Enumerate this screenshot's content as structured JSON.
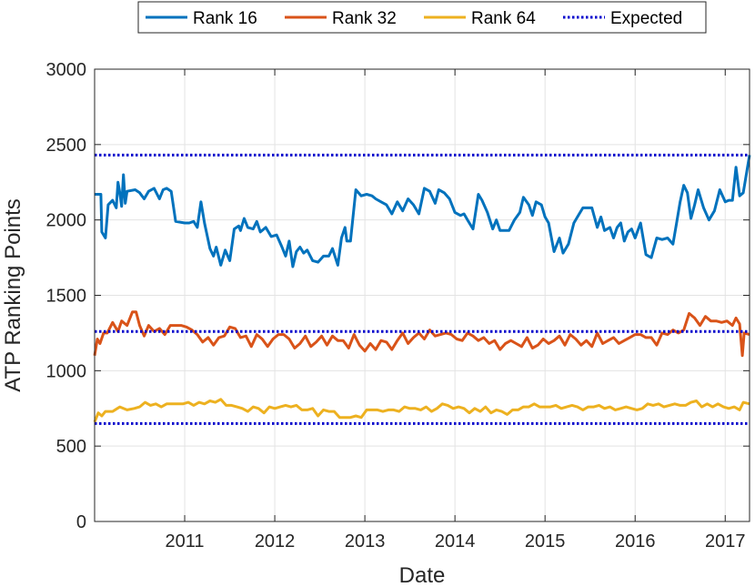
{
  "chart_data": {
    "type": "line",
    "xlabel": "Date",
    "ylabel": "ATP Ranking Points",
    "ylim": [
      0,
      3000
    ],
    "yticks": [
      0,
      500,
      1000,
      1500,
      2000,
      2500,
      3000
    ],
    "xlim": [
      2010.0,
      2017.27
    ],
    "xticks": [
      {
        "value": 2011,
        "label": "2011"
      },
      {
        "value": 2012,
        "label": "2012"
      },
      {
        "value": 2013,
        "label": "2013"
      },
      {
        "value": 2014,
        "label": "2014"
      },
      {
        "value": 2015,
        "label": "2015"
      },
      {
        "value": 2016,
        "label": "2016"
      },
      {
        "value": 2017,
        "label": "2017"
      }
    ],
    "grid": true,
    "legend_position": "top-center, outside the plot",
    "series": [
      {
        "name": "Rank 16",
        "color": "#0072BD",
        "style": "solid",
        "x": [
          2010.0,
          2010.07,
          2010.08,
          2010.12,
          2010.15,
          2010.2,
          2010.24,
          2010.26,
          2010.28,
          2010.3,
          2010.32,
          2010.34,
          2010.36,
          2010.45,
          2010.5,
          2010.55,
          2010.6,
          2010.66,
          2010.72,
          2010.76,
          2010.8,
          2010.85,
          2010.9,
          2011.0,
          2011.05,
          2011.1,
          2011.14,
          2011.18,
          2011.22,
          2011.28,
          2011.32,
          2011.35,
          2011.4,
          2011.45,
          2011.5,
          2011.55,
          2011.6,
          2011.62,
          2011.66,
          2011.7,
          2011.76,
          2011.8,
          2011.84,
          2011.9,
          2011.96,
          2012.02,
          2012.08,
          2012.12,
          2012.16,
          2012.2,
          2012.24,
          2012.28,
          2012.32,
          2012.36,
          2012.42,
          2012.48,
          2012.54,
          2012.6,
          2012.64,
          2012.7,
          2012.74,
          2012.78,
          2012.8,
          2012.84,
          2012.9,
          2012.96,
          2013.02,
          2013.08,
          2013.12,
          2013.18,
          2013.24,
          2013.3,
          2013.36,
          2013.42,
          2013.48,
          2013.54,
          2013.6,
          2013.66,
          2013.72,
          2013.78,
          2013.82,
          2013.88,
          2013.94,
          2014.0,
          2014.06,
          2014.1,
          2014.14,
          2014.2,
          2014.26,
          2014.3,
          2014.36,
          2014.42,
          2014.46,
          2014.5,
          2014.54,
          2014.6,
          2014.66,
          2014.72,
          2014.76,
          2014.82,
          2014.86,
          2014.9,
          2014.96,
          2015.0,
          2015.04,
          2015.1,
          2015.16,
          2015.2,
          2015.26,
          2015.32,
          2015.38,
          2015.42,
          2015.46,
          2015.52,
          2015.58,
          2015.62,
          2015.66,
          2015.72,
          2015.76,
          2015.8,
          2015.84,
          2015.88,
          2015.92,
          2015.96,
          2016.0,
          2016.06,
          2016.12,
          2016.18,
          2016.24,
          2016.3,
          2016.36,
          2016.42,
          2016.46,
          2016.5,
          2016.54,
          2016.58,
          2016.62,
          2016.66,
          2016.7,
          2016.76,
          2016.82,
          2016.88,
          2016.94,
          2017.0,
          2017.04,
          2017.08,
          2017.12,
          2017.16,
          2017.2,
          2017.27
        ],
        "y": [
          2170,
          2170,
          1920,
          1880,
          2100,
          2130,
          2080,
          2250,
          2180,
          2090,
          2300,
          2110,
          2190,
          2200,
          2180,
          2140,
          2190,
          2210,
          2140,
          2200,
          2210,
          2190,
          1990,
          1980,
          1980,
          1990,
          1950,
          2120,
          1980,
          1810,
          1760,
          1820,
          1700,
          1800,
          1730,
          1940,
          1960,
          1930,
          2010,
          1950,
          1940,
          1990,
          1920,
          1950,
          1890,
          1900,
          1820,
          1760,
          1860,
          1690,
          1790,
          1820,
          1780,
          1800,
          1730,
          1720,
          1760,
          1760,
          1810,
          1700,
          1880,
          1950,
          1860,
          1860,
          2200,
          2160,
          2170,
          2160,
          2140,
          2120,
          2100,
          2040,
          2120,
          2060,
          2140,
          2100,
          2040,
          2210,
          2190,
          2110,
          2200,
          2180,
          2140,
          2050,
          2030,
          2040,
          2000,
          1940,
          2170,
          2130,
          2050,
          1940,
          2000,
          1930,
          1930,
          1930,
          2000,
          2050,
          2150,
          2100,
          2030,
          2120,
          2100,
          2020,
          1980,
          1790,
          1880,
          1780,
          1840,
          1980,
          2040,
          2080,
          2080,
          2080,
          1950,
          2020,
          1930,
          1950,
          1880,
          1950,
          1980,
          1860,
          1920,
          1940,
          1880,
          1980,
          1770,
          1750,
          1880,
          1870,
          1880,
          1840,
          1980,
          2120,
          2230,
          2180,
          2010,
          2100,
          2200,
          2080,
          2000,
          2060,
          2200,
          2120,
          2130,
          2130,
          2350,
          2160,
          2180,
          2430
        ]
      },
      {
        "name": "Rank 32",
        "color": "#D95319",
        "style": "solid",
        "x": [
          2010.0,
          2010.03,
          2010.06,
          2010.1,
          2010.14,
          2010.2,
          2010.26,
          2010.3,
          2010.36,
          2010.42,
          2010.46,
          2010.5,
          2010.55,
          2010.6,
          2010.66,
          2010.72,
          2010.78,
          2010.84,
          2010.9,
          2010.96,
          2011.02,
          2011.08,
          2011.14,
          2011.2,
          2011.26,
          2011.32,
          2011.38,
          2011.44,
          2011.5,
          2011.56,
          2011.62,
          2011.68,
          2011.74,
          2011.8,
          2011.86,
          2011.92,
          2011.98,
          2012.04,
          2012.1,
          2012.16,
          2012.22,
          2012.28,
          2012.34,
          2012.4,
          2012.46,
          2012.52,
          2012.58,
          2012.64,
          2012.7,
          2012.76,
          2012.82,
          2012.88,
          2012.94,
          2013.0,
          2013.06,
          2013.12,
          2013.18,
          2013.24,
          2013.3,
          2013.36,
          2013.42,
          2013.48,
          2013.54,
          2013.6,
          2013.66,
          2013.72,
          2013.78,
          2013.84,
          2013.9,
          2013.96,
          2014.02,
          2014.08,
          2014.14,
          2014.2,
          2014.26,
          2014.32,
          2014.38,
          2014.44,
          2014.5,
          2014.56,
          2014.62,
          2014.68,
          2014.74,
          2014.8,
          2014.86,
          2014.92,
          2014.98,
          2015.04,
          2015.1,
          2015.16,
          2015.22,
          2015.28,
          2015.34,
          2015.4,
          2015.46,
          2015.52,
          2015.58,
          2015.64,
          2015.7,
          2015.76,
          2015.82,
          2015.88,
          2015.94,
          2016.0,
          2016.06,
          2016.12,
          2016.18,
          2016.24,
          2016.3,
          2016.36,
          2016.42,
          2016.48,
          2016.54,
          2016.6,
          2016.66,
          2016.72,
          2016.78,
          2016.84,
          2016.9,
          2016.96,
          2017.02,
          2017.08,
          2017.12,
          2017.16,
          2017.19,
          2017.21,
          2017.27
        ],
        "y": [
          1100,
          1210,
          1180,
          1250,
          1250,
          1320,
          1260,
          1330,
          1300,
          1390,
          1390,
          1300,
          1230,
          1300,
          1260,
          1280,
          1240,
          1300,
          1300,
          1300,
          1290,
          1270,
          1240,
          1190,
          1220,
          1170,
          1220,
          1230,
          1290,
          1280,
          1220,
          1230,
          1160,
          1240,
          1210,
          1160,
          1210,
          1240,
          1240,
          1210,
          1150,
          1180,
          1230,
          1160,
          1190,
          1230,
          1170,
          1230,
          1200,
          1200,
          1150,
          1240,
          1170,
          1130,
          1180,
          1140,
          1200,
          1190,
          1140,
          1200,
          1250,
          1180,
          1220,
          1250,
          1210,
          1270,
          1230,
          1240,
          1250,
          1240,
          1210,
          1200,
          1250,
          1230,
          1200,
          1220,
          1180,
          1200,
          1140,
          1180,
          1200,
          1180,
          1160,
          1220,
          1150,
          1170,
          1210,
          1180,
          1200,
          1230,
          1170,
          1240,
          1210,
          1170,
          1200,
          1160,
          1250,
          1180,
          1200,
          1220,
          1180,
          1200,
          1220,
          1240,
          1240,
          1220,
          1220,
          1170,
          1250,
          1240,
          1270,
          1250,
          1270,
          1380,
          1350,
          1300,
          1360,
          1330,
          1330,
          1320,
          1330,
          1300,
          1350,
          1310,
          1100,
          1250,
          1240
        ]
      },
      {
        "name": "Rank 64",
        "color": "#EDB120",
        "style": "solid",
        "x": [
          2010.0,
          2010.04,
          2010.08,
          2010.12,
          2010.2,
          2010.28,
          2010.36,
          2010.44,
          2010.5,
          2010.56,
          2010.62,
          2010.68,
          2010.74,
          2010.8,
          2010.86,
          2010.92,
          2010.98,
          2011.04,
          2011.1,
          2011.16,
          2011.22,
          2011.28,
          2011.34,
          2011.4,
          2011.46,
          2011.52,
          2011.58,
          2011.64,
          2011.7,
          2011.76,
          2011.82,
          2011.88,
          2011.94,
          2012.0,
          2012.06,
          2012.12,
          2012.18,
          2012.24,
          2012.3,
          2012.36,
          2012.42,
          2012.48,
          2012.54,
          2012.6,
          2012.66,
          2012.72,
          2012.78,
          2012.84,
          2012.9,
          2012.96,
          2013.02,
          2013.08,
          2013.14,
          2013.2,
          2013.26,
          2013.32,
          2013.38,
          2013.44,
          2013.5,
          2013.56,
          2013.62,
          2013.68,
          2013.74,
          2013.8,
          2013.86,
          2013.92,
          2013.98,
          2014.04,
          2014.1,
          2014.16,
          2014.22,
          2014.28,
          2014.34,
          2014.4,
          2014.46,
          2014.52,
          2014.58,
          2014.64,
          2014.7,
          2014.76,
          2014.82,
          2014.88,
          2014.94,
          2015.0,
          2015.06,
          2015.12,
          2015.18,
          2015.24,
          2015.3,
          2015.36,
          2015.42,
          2015.48,
          2015.54,
          2015.6,
          2015.66,
          2015.72,
          2015.78,
          2015.84,
          2015.9,
          2015.96,
          2016.02,
          2016.08,
          2016.14,
          2016.2,
          2016.26,
          2016.32,
          2016.38,
          2016.44,
          2016.5,
          2016.56,
          2016.62,
          2016.68,
          2016.74,
          2016.8,
          2016.86,
          2016.92,
          2016.98,
          2017.04,
          2017.1,
          2017.16,
          2017.2,
          2017.27
        ],
        "y": [
          660,
          720,
          700,
          730,
          730,
          760,
          740,
          750,
          760,
          790,
          770,
          780,
          760,
          780,
          780,
          780,
          780,
          790,
          770,
          790,
          780,
          800,
          790,
          810,
          770,
          770,
          760,
          750,
          730,
          760,
          750,
          720,
          760,
          750,
          760,
          770,
          760,
          770,
          740,
          740,
          750,
          700,
          740,
          730,
          730,
          690,
          690,
          690,
          700,
          690,
          740,
          740,
          740,
          730,
          740,
          740,
          730,
          760,
          750,
          750,
          740,
          760,
          730,
          750,
          780,
          770,
          750,
          760,
          750,
          720,
          750,
          730,
          760,
          720,
          740,
          730,
          710,
          740,
          740,
          760,
          760,
          780,
          760,
          760,
          760,
          770,
          750,
          760,
          770,
          760,
          740,
          760,
          760,
          770,
          750,
          760,
          740,
          750,
          760,
          750,
          740,
          750,
          780,
          770,
          780,
          760,
          770,
          780,
          770,
          770,
          790,
          800,
          760,
          780,
          760,
          780,
          760,
          750,
          760,
          740,
          790,
          780
        ]
      },
      {
        "name": "Expected",
        "color": "#0000CC",
        "style": "dotted",
        "levels": [
          2430,
          1260,
          650
        ]
      }
    ]
  }
}
